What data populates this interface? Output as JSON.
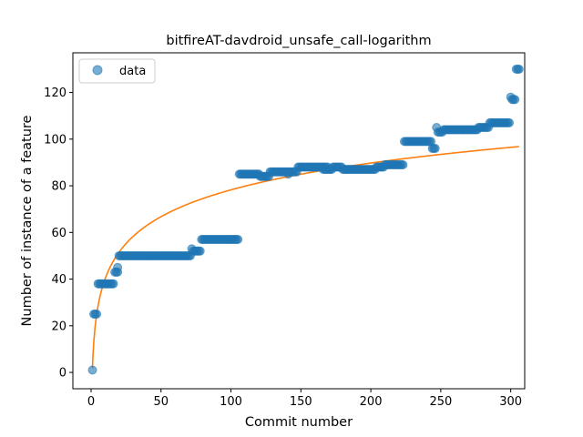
{
  "chart_data": {
    "type": "scatter",
    "title": "bitfireAT-davdroid_unsafe_call-logarithm",
    "xlabel": "Commit number",
    "ylabel": "Number of instance of a feature",
    "xlim": [
      -13,
      310
    ],
    "ylim": [
      -7,
      137
    ],
    "xticks": [
      0,
      50,
      100,
      150,
      200,
      250,
      300
    ],
    "yticks": [
      0,
      20,
      40,
      60,
      80,
      100,
      120
    ],
    "grid": false,
    "legend": {
      "placement": "top-left",
      "entries": [
        "data"
      ]
    },
    "colors": {
      "data": "#1f77b4",
      "fit": "#ff7f0e"
    },
    "series": [
      {
        "name": "data",
        "kind": "scatter",
        "segments": [
          {
            "x_start": 1,
            "x_end": 1,
            "y": 1
          },
          {
            "x_start": 2,
            "x_end": 4,
            "y": 25
          },
          {
            "x_start": 5,
            "x_end": 16,
            "y": 38
          },
          {
            "x_start": 17,
            "x_end": 19,
            "y": 43
          },
          {
            "x_start": 19,
            "x_end": 19,
            "y": 45
          },
          {
            "x_start": 20,
            "x_end": 71,
            "y": 50
          },
          {
            "x_start": 72,
            "x_end": 72,
            "y": 53
          },
          {
            "x_start": 73,
            "x_end": 78,
            "y": 52
          },
          {
            "x_start": 79,
            "x_end": 105,
            "y": 57
          },
          {
            "x_start": 106,
            "x_end": 120,
            "y": 85
          },
          {
            "x_start": 121,
            "x_end": 127,
            "y": 84
          },
          {
            "x_start": 128,
            "x_end": 147,
            "y": 86
          },
          {
            "x_start": 141,
            "x_end": 141,
            "y": 85
          },
          {
            "x_start": 148,
            "x_end": 148,
            "y": 88
          },
          {
            "x_start": 149,
            "x_end": 169,
            "y": 88
          },
          {
            "x_start": 166,
            "x_end": 172,
            "y": 87
          },
          {
            "x_start": 173,
            "x_end": 179,
            "y": 88
          },
          {
            "x_start": 180,
            "x_end": 203,
            "y": 87
          },
          {
            "x_start": 204,
            "x_end": 209,
            "y": 88
          },
          {
            "x_start": 210,
            "x_end": 223,
            "y": 89
          },
          {
            "x_start": 224,
            "x_end": 243,
            "y": 99
          },
          {
            "x_start": 244,
            "x_end": 246,
            "y": 96
          },
          {
            "x_start": 247,
            "x_end": 247,
            "y": 105
          },
          {
            "x_start": 248,
            "x_end": 251,
            "y": 103
          },
          {
            "x_start": 252,
            "x_end": 276,
            "y": 104
          },
          {
            "x_start": 277,
            "x_end": 284,
            "y": 105
          },
          {
            "x_start": 285,
            "x_end": 299,
            "y": 107
          },
          {
            "x_start": 300,
            "x_end": 300,
            "y": 118
          },
          {
            "x_start": 301,
            "x_end": 303,
            "y": 117
          },
          {
            "x_start": 304,
            "x_end": 306,
            "y": 130
          }
        ]
      },
      {
        "name": "",
        "kind": "line",
        "model": "logarithmic",
        "a": 1.8,
        "b": 16.6,
        "x_range": [
          1,
          306
        ]
      }
    ]
  }
}
